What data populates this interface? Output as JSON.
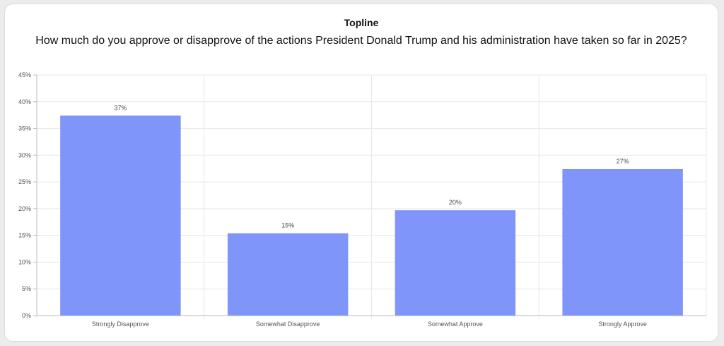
{
  "card": {
    "heading": "Topline",
    "question": "How much do you approve or disapprove of the actions President Donald Trump and his administration have taken so far in 2025?"
  },
  "colors": {
    "bar": "#8095fa",
    "grid": "#e8e8e8",
    "axis": "#bbbbbb"
  },
  "chart_data": {
    "type": "bar",
    "categories": [
      "Strongly Disapprove",
      "Somewhat Disapprove",
      "Somewhat Approve",
      "Strongly Approve"
    ],
    "values": [
      37.4,
      15.4,
      19.7,
      27.4
    ],
    "data_labels": [
      "37%",
      "15%",
      "20%",
      "27%"
    ],
    "yticks": [
      "0%",
      "5%",
      "10%",
      "15%",
      "20%",
      "25%",
      "30%",
      "35%",
      "40%",
      "45%"
    ],
    "ylim": [
      0,
      45
    ],
    "title": "",
    "xlabel": "",
    "ylabel": "",
    "grid": true,
    "legend": "none"
  }
}
